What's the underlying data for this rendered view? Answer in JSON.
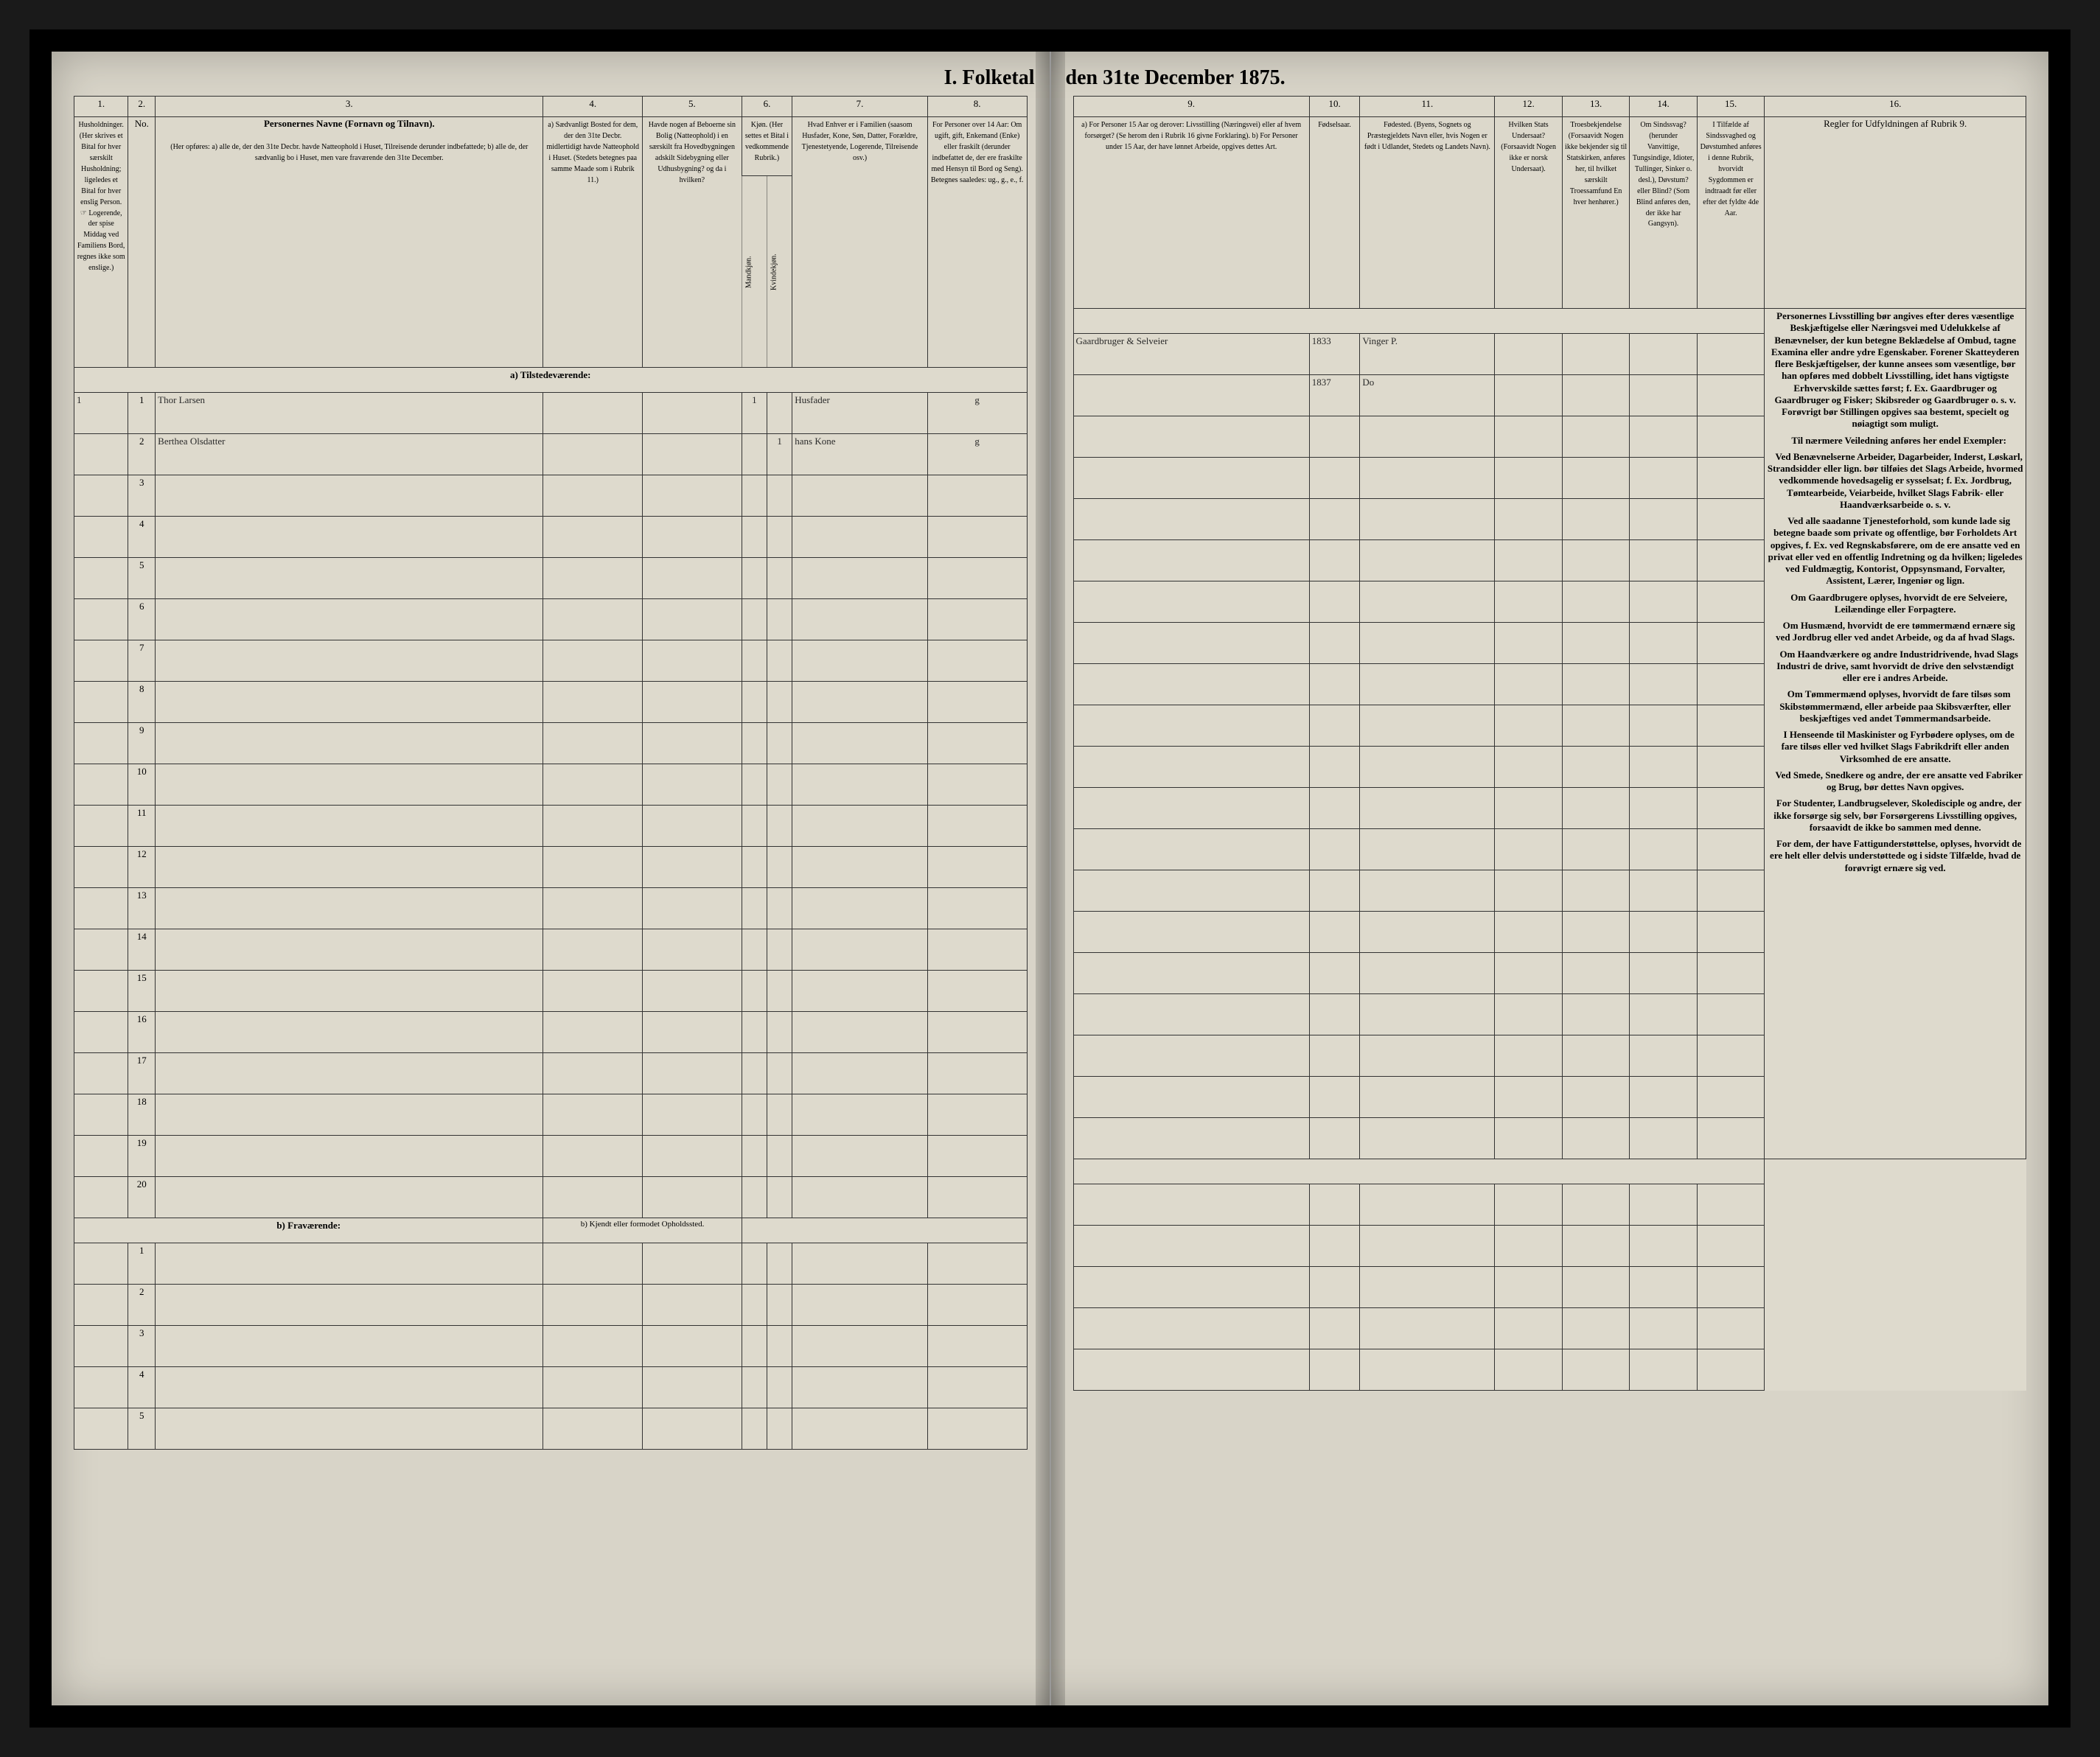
{
  "title": {
    "left": "I. Folketal",
    "right": "den 31te December 1875."
  },
  "columns": {
    "nums": [
      "1.",
      "2.",
      "3.",
      "4.",
      "5.",
      "6.",
      "7.",
      "8.",
      "9.",
      "10.",
      "11.",
      "12.",
      "13.",
      "14.",
      "15.",
      "16."
    ],
    "h1": "Husholdninger.\n(Her skrives et Bital for hver særskilt Husholdning; ligeledes et Bital for hver enslig Person.\n☞ Logerende, der spise Middag ved Familiens Bord, regnes ikke som enslige.)",
    "h2": "No.",
    "h3_title": "Personernes Navne (Fornavn og Tilnavn).",
    "h3_sub": "(Her opføres:\na) alle de, der den 31te Decbr. havde Natteophold i Huset, Tilreisende derunder indbefattede;\nb) alle de, der sædvanlig bo i Huset, men vare fraværende den 31te December.",
    "h4": "a) Sædvanligt Bosted for dem, der den 31te Decbr. midlertidigt havde Natteophold i Huset. (Stedets betegnes paa samme Maade som i Rubrik 11.)",
    "h5": "Havde nogen af Beboerne sin Bolig (Natteophold) i en særskilt fra Hovedbygningen adskilt Sidebygning eller Udhusbygning? og da i hvilken?",
    "h6": "Kjøn.\n(Her settes et Bital i vedkommende Rubrik.)",
    "h6a": "Mandkjøn.",
    "h6b": "Kvindekjøn.",
    "h7": "Hvad Enhver er i Familien\n(saasom Husfader, Kone, Søn, Datter, Forældre, Tjenestetyende, Logerende, Tilreisende osv.)",
    "h8": "For Personer over 14 Aar: Om ugift, gift, Enkemand (Enke) eller fraskilt (derunder indbefattet de, der ere fraskilte med Hensyn til Bord og Seng).\nBetegnes saaledes:\nug., g., e., f.",
    "h9": "a) For Personer 15 Aar og derover: Livsstilling (Næringsvei) eller af hvem forsørget? (Se herom den i Rubrik 16 givne Forklaring).\nb) For Personer under 15 Aar, der have lønnet Arbeide, opgives dettes Art.",
    "h10": "Fødselsaar.",
    "h11": "Fødested.\n(Byens, Sognets og Præstegjeldets Navn eller, hvis Nogen er født i Udlandet, Stedets og Landets Navn).",
    "h12": "Hvilken Stats Undersaat?\n(Forsaavidt Nogen ikke er norsk Undersaat).",
    "h13": "Troesbekjendelse\n(Forsaavidt Nogen ikke bekjender sig til Statskirken, anføres her, til hvilket særskilt Troessamfund En hver henhører.)",
    "h14": "Om Sindssvag?\n(herunder Vanvittige, Tungsindige, Idioter, Tullinger, Sinker o. desl.), Døvstum? eller Blind? (Som Blind anføres den, der ikke har Gangsyn).",
    "h15": "I Tilfælde af Sindssvaghed og Døvstumhed anføres i denne Rubrik, hvorvidt Sygdommen er indtraadt før eller efter det fyldte 4de Aar.",
    "h16": "Regler for Udfyldningen\naf\nRubrik 9."
  },
  "section_a": "a) Tilstedeværende:",
  "section_b": "b) Fraværende:",
  "section_b_col4": "b) Kjendt eller formodet Opholdssted.",
  "rows_a_count": 20,
  "rows_b_count": 5,
  "entries": [
    {
      "hh": "1",
      "no": "1",
      "name": "Thor Larsen",
      "c6a": "1",
      "c6b": "",
      "c7": "Husfader",
      "c8": "g",
      "c9": "Gaardbruger & Selveier",
      "c10": "1833",
      "c11": "Vinger P."
    },
    {
      "hh": "",
      "no": "2",
      "name": "Berthea Olsdatter",
      "c6a": "",
      "c6b": "1",
      "c7": "hans Kone",
      "c8": "g",
      "c9": "",
      "c10": "1837",
      "c11": "Do"
    }
  ],
  "instructions": {
    "title": "",
    "paras": [
      "Personernes Livsstilling bør angives efter deres væsentlige Beskjæftigelse eller Næringsvei med Udelukkelse af Benævnelser, der kun betegne Beklædelse af Ombud, tagne Examina eller andre ydre Egenskaber. Forener Skatteyderen flere Beskjæftigelser, der kunne ansees som væsentlige, bør han opføres med dobbelt Livsstilling, idet hans vigtigste Erhvervskilde sættes først; f. Ex. Gaardbruger og Gaardbruger og Fisker; Skibsreder og Gaardbruger o. s. v. Forøvrigt bør Stillingen opgives saa bestemt, specielt og nøiagtigt som muligt.",
      "Til nærmere Veiledning anføres her endel Exempler:",
      "Ved Benævnelserne Arbeider, Dagarbeider, Inderst, Løskarl, Strandsidder eller lign. bør tilføies det Slags Arbeide, hvormed vedkommende hovedsagelig er sysselsat; f. Ex. Jordbrug, Tømtearbeide, Veiarbeide, hvilket Slags Fabrik- eller Haandværksarbeide o. s. v.",
      "Ved alle saadanne Tjenesteforhold, som kunde lade sig betegne baade som private og offentlige, bør Forholdets Art opgives, f. Ex. ved Regnskabsførere, om de ere ansatte ved en privat eller ved en offentlig Indretning og da hvilken; ligeledes ved Fuldmægtig, Kontorist, Oppsynsmand, Forvalter, Assistent, Lærer, Ingeniør og lign.",
      "Om Gaardbrugere oplyses, hvorvidt de ere Selveiere, Leilændinge eller Forpagtere.",
      "Om Husmænd, hvorvidt de ere tømmermænd ernære sig ved Jordbrug eller ved andet Arbeide, og da af hvad Slags.",
      "Om Haandværkere og andre Industridrivende, hvad Slags Industri de drive, samt hvorvidt de drive den selvstændigt eller ere i andres Arbeide.",
      "Om Tømmermænd oplyses, hvorvidt de fare tilsøs som Skibstømmermænd, eller arbeide paa Skibsværfter, eller beskjæftiges ved andet Tømmermandsarbeide.",
      "I Henseende til Maskinister og Fyrbødere oplyses, om de fare tilsøs eller ved hvilket Slags Fabrikdrift eller anden Virksomhed de ere ansatte.",
      "Ved Smede, Snedkere og andre, der ere ansatte ved Fabriker og Brug, bør dettes Navn opgives.",
      "For Studenter, Landbrugselever, Skoledisciple og andre, der ikke forsørge sig selv, bør Forsørgerens Livsstilling opgives, forsaavidt de ikke bo sammen med denne.",
      "For dem, der have Fattigunderstøttelse, oplyses, hvorvidt de ere helt eller delvis understøttede og i sidste Tilfælde, hvad de forøvrigt ernære sig ved."
    ]
  }
}
